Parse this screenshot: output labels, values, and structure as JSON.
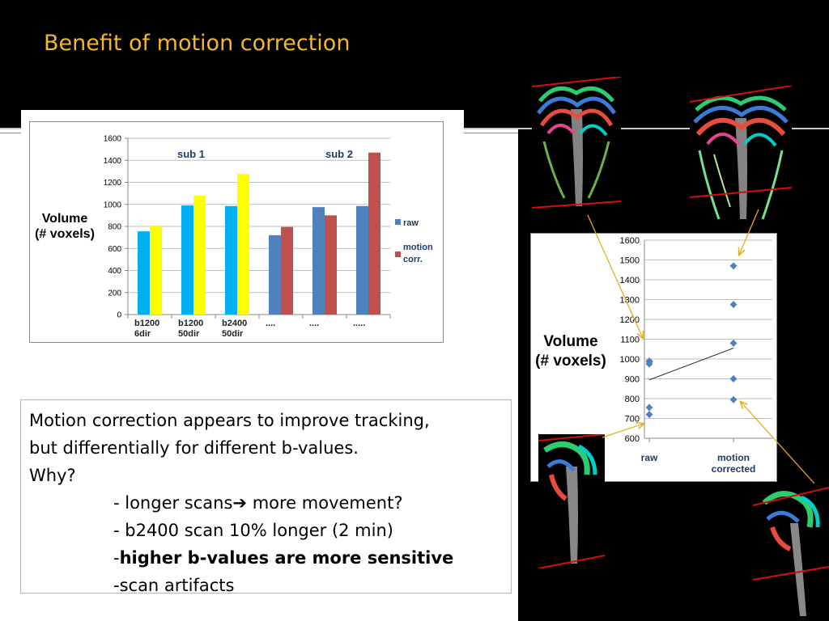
{
  "slide": {
    "title": "Benefit of motion correction"
  },
  "chart_data": [
    {
      "type": "bar",
      "title": "",
      "ylabel": "Volume (# voxels)",
      "ylabel_lines": [
        "Volume",
        "(# voxels)"
      ],
      "ylim": [
        0,
        1600
      ],
      "yticks": [
        0,
        200,
        400,
        600,
        800,
        1000,
        1200,
        1400,
        1600
      ],
      "grid": true,
      "categories": [
        [
          "b1200",
          "6dir"
        ],
        [
          "b1200",
          "50dir"
        ],
        [
          "b2400",
          "50dir"
        ],
        [
          "...."
        ],
        [
          "...."
        ],
        [
          "....."
        ]
      ],
      "annotations": [
        "sub 1",
        "sub 2"
      ],
      "legend": {
        "placement": "right",
        "entries": [
          "raw",
          "motion corr."
        ]
      },
      "series": [
        {
          "name": "raw",
          "values": [
            755,
            990,
            985,
            720,
            975,
            985
          ],
          "colors": [
            "#00b0f0",
            "#00b0f0",
            "#00b0f0",
            "#4f81bd",
            "#4f81bd",
            "#4f81bd"
          ]
        },
        {
          "name": "motion corr.",
          "values": [
            800,
            1080,
            1275,
            795,
            900,
            1470
          ],
          "colors": [
            "#ffff00",
            "#ffff00",
            "#ffff00",
            "#c0504d",
            "#c0504d",
            "#c0504d"
          ]
        }
      ]
    },
    {
      "type": "scatter",
      "title": "",
      "ylabel": "Volume (# voxels)",
      "ylabel_lines": [
        "Volume",
        "(# voxels)"
      ],
      "ylim": [
        600,
        1600
      ],
      "yticks": [
        600,
        700,
        800,
        900,
        1000,
        1100,
        1200,
        1300,
        1400,
        1500,
        1600
      ],
      "grid": true,
      "categories": [
        [
          "raw"
        ],
        [
          "motion",
          "corrected"
        ]
      ],
      "points": [
        {
          "x": "raw",
          "y": 720
        },
        {
          "x": "raw",
          "y": 755
        },
        {
          "x": "raw",
          "y": 975
        },
        {
          "x": "raw",
          "y": 985
        },
        {
          "x": "raw",
          "y": 990
        },
        {
          "x": "motion corrected",
          "y": 795
        },
        {
          "x": "motion corrected",
          "y": 900
        },
        {
          "x": "motion corrected",
          "y": 1080
        },
        {
          "x": "motion corrected",
          "y": 1275
        },
        {
          "x": "motion corrected",
          "y": 1470
        }
      ],
      "trendline": {
        "from": 895,
        "to": 1055
      },
      "marker_color": "#4f81bd"
    }
  ],
  "textbox": {
    "line1": "Motion correction appears to improve tracking,",
    "line2": "but differentially for different b-values.",
    "line3": "Why?",
    "b1_a": "- longer scans",
    "b1_b": " more movement?",
    "b2": "- b2400 scan 10% longer (2 min)",
    "b3_dash": "-",
    "b3_bold": "higher b-values are more sensitive",
    "b4": "-scan artifacts"
  },
  "colors": {
    "title": "#f1b82d",
    "arrow": "#e6ac1f",
    "slice_line": "#d01010"
  }
}
